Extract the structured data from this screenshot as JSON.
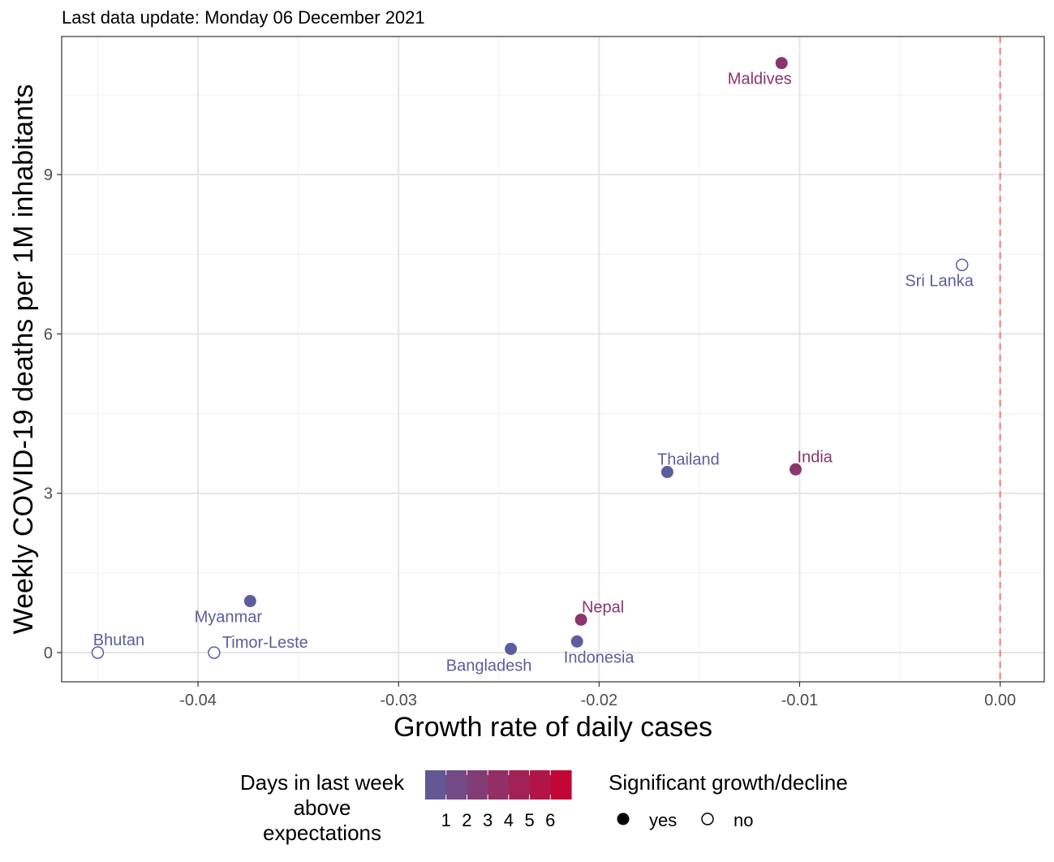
{
  "chart_data": {
    "type": "scatter",
    "subtitle": "Last data update: Monday 06 December 2021",
    "xlabel": "Growth rate of daily cases",
    "ylabel": "Weekly COVID-19 deaths per 1M inhabitants",
    "xlim": [
      -0.0468,
      0.0022
    ],
    "ylim": [
      -0.55,
      11.6
    ],
    "x_ticks": [
      -0.04,
      -0.03,
      -0.02,
      -0.01,
      0.0
    ],
    "x_tick_labels": [
      "-0.04",
      "-0.03",
      "-0.02",
      "-0.01",
      "0.00"
    ],
    "y_ticks": [
      0,
      3,
      6,
      9
    ],
    "y_tick_labels": [
      "0",
      "3",
      "6",
      "9"
    ],
    "reference_line": {
      "x": 0,
      "style": "dashed",
      "color": "#F8766D"
    },
    "grid": true,
    "points": [
      {
        "label": "Maldives",
        "x": -0.0109,
        "y": 11.1,
        "days": 3,
        "significant": "yes"
      },
      {
        "label": "Sri Lanka",
        "x": -0.0019,
        "y": 7.3,
        "days": 0,
        "significant": "no"
      },
      {
        "label": "Thailand",
        "x": -0.0166,
        "y": 3.4,
        "days": 0,
        "significant": "yes"
      },
      {
        "label": "India",
        "x": -0.0102,
        "y": 3.45,
        "days": 3,
        "significant": "yes"
      },
      {
        "label": "Myanmar",
        "x": -0.0374,
        "y": 0.97,
        "days": 0,
        "significant": "yes"
      },
      {
        "label": "Nepal",
        "x": -0.0209,
        "y": 0.62,
        "days": 3,
        "significant": "yes"
      },
      {
        "label": "Bhutan",
        "x": -0.045,
        "y": 0.0,
        "days": 0,
        "significant": "no"
      },
      {
        "label": "Timor-Leste",
        "x": -0.0392,
        "y": 0.0,
        "days": 0,
        "significant": "no"
      },
      {
        "label": "Bangladesh",
        "x": -0.0244,
        "y": 0.07,
        "days": 0,
        "significant": "yes"
      },
      {
        "label": "Indonesia",
        "x": -0.0211,
        "y": 0.21,
        "days": 0,
        "significant": "yes"
      }
    ],
    "legend": {
      "position": "bottom",
      "color_title": [
        "Days in last week",
        "above",
        "expectations"
      ],
      "color_breaks": [
        "1",
        "2",
        "3",
        "4",
        "5",
        "6"
      ],
      "color_low": "#5B5E9C",
      "color_high": "#C9002F",
      "shape_title": "Significant growth/decline",
      "shape_labels": [
        "yes",
        "no"
      ]
    }
  }
}
